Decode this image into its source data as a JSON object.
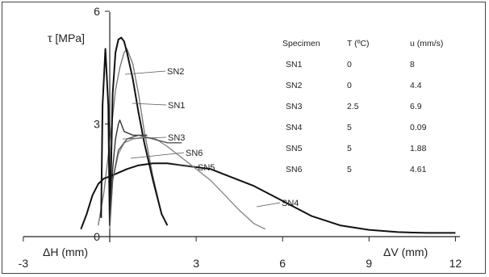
{
  "chart_data": {
    "type": "line",
    "ylabel": "τ [MPa]",
    "xlabel_left": "ΔH (mm)",
    "xlabel_right": "ΔV (mm)",
    "xlim": [
      -3,
      12
    ],
    "ylim": [
      0,
      6
    ],
    "x_ticks": [
      -3,
      0,
      3,
      6,
      9,
      12
    ],
    "y_ticks": [
      0,
      3,
      6
    ],
    "grid": false,
    "series": [
      {
        "name": "SN1",
        "color": "#7a7a7a",
        "x": [
          -0.4,
          -0.2,
          0,
          0.1,
          0.2,
          0.35,
          0.5,
          0.6,
          0.8,
          1.0,
          1.2,
          1.5,
          1.8
        ],
        "y": [
          0.3,
          1.2,
          2.5,
          3.2,
          3.9,
          4.5,
          4.9,
          5.0,
          4.6,
          3.8,
          2.8,
          1.6,
          0.6
        ]
      },
      {
        "name": "SN2",
        "color": "#111111",
        "x": [
          -0.3,
          -0.25,
          -0.15,
          -0.05,
          0,
          0.05,
          0.1,
          0.2,
          0.3,
          0.4,
          0.5,
          0.6,
          0.8,
          1.0,
          1.2,
          1.5,
          1.8,
          2.0
        ],
        "y": [
          0.5,
          3.5,
          5.0,
          3.5,
          0.3,
          2.0,
          3.8,
          4.9,
          5.25,
          5.3,
          5.2,
          4.9,
          4.2,
          3.3,
          2.5,
          1.5,
          0.6,
          0.3
        ]
      },
      {
        "name": "SN3",
        "color": "#333333",
        "x": [
          0,
          0.1,
          0.2,
          0.3,
          0.35,
          0.5,
          0.8,
          1.0,
          1.3
        ],
        "y": [
          0.3,
          1.8,
          2.6,
          3.0,
          3.1,
          2.8,
          2.7,
          2.7,
          2.7
        ]
      },
      {
        "name": "SN4",
        "color": "#111111",
        "x": [
          -1.0,
          -0.8,
          -0.6,
          -0.4,
          -0.2,
          0,
          0.3,
          0.6,
          1.0,
          1.5,
          2.0,
          2.5,
          3.0,
          3.5,
          4.0,
          5.0,
          6.0,
          7.0,
          8.0,
          9.0,
          10.0,
          11.0,
          12.0
        ],
        "y": [
          0.2,
          0.6,
          1.1,
          1.4,
          1.55,
          1.6,
          1.7,
          1.8,
          1.9,
          1.95,
          1.95,
          1.9,
          1.85,
          1.8,
          1.65,
          1.35,
          0.95,
          0.55,
          0.3,
          0.18,
          0.12,
          0.1,
          0.1
        ]
      },
      {
        "name": "SN5",
        "color": "#8a8a8a",
        "x": [
          0,
          0.1,
          0.3,
          0.5,
          0.8,
          1.2,
          1.6,
          2.0,
          2.5,
          3.0,
          3.5,
          4.0,
          4.5,
          5.0,
          5.4
        ],
        "y": [
          0.2,
          1.5,
          2.2,
          2.5,
          2.6,
          2.65,
          2.6,
          2.4,
          2.1,
          1.8,
          1.5,
          1.1,
          0.7,
          0.35,
          0.2
        ]
      },
      {
        "name": "SN6",
        "color": "#555555",
        "x": [
          0,
          0.1,
          0.3,
          0.6,
          1.0,
          1.5,
          2.0,
          2.5
        ],
        "y": [
          0.3,
          1.5,
          2.3,
          2.6,
          2.7,
          2.6,
          2.5,
          2.5
        ]
      }
    ],
    "series_labels": [
      "SN2",
      "SN1",
      "SN3",
      "SN6",
      "SN5",
      "SN4"
    ],
    "table": {
      "headers": [
        "Specimen",
        "T (ºC)",
        "u (mm/s)"
      ],
      "rows": [
        [
          "SN1",
          "0",
          "8"
        ],
        [
          "SN2",
          "0",
          "4.4"
        ],
        [
          "SN3",
          "2.5",
          "6.9"
        ],
        [
          "SN4",
          "5",
          "0.09"
        ],
        [
          "SN5",
          "5",
          "1.88"
        ],
        [
          "SN6",
          "5",
          "4.61"
        ]
      ]
    }
  }
}
